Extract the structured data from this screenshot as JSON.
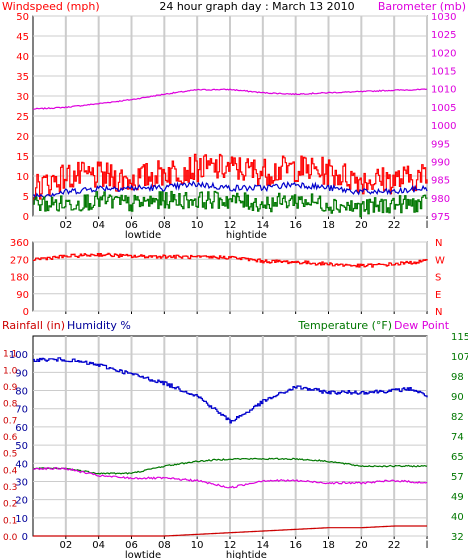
{
  "header": {
    "left_label": "Windspeed (mph)",
    "title": "24 hour graph day : March 13 2010",
    "right_label": "Barometer (mb)"
  },
  "panel3_header": {
    "rainfall_label": "Rainfall (in)",
    "humidity_label": "Humidity %",
    "temperature_label": "Temperature (°F)",
    "dewpoint_label": "Dew Point"
  },
  "tide_labels": {
    "low": "lowtide",
    "high": "hightide"
  },
  "x_ticks": [
    "02",
    "04",
    "06",
    "08",
    "10",
    "12",
    "14",
    "16",
    "18",
    "20",
    "22",
    "l"
  ],
  "colors": {
    "red": "#ff0000",
    "darkred": "#cc0000",
    "blue": "#0000cc",
    "green": "#007700",
    "magenta": "#dd00dd",
    "navy": "#000099",
    "grid": "#cccccc"
  },
  "chart_data": [
    {
      "type": "line",
      "title": "24 hour graph day : March 13 2010",
      "x_range": [
        0,
        24
      ],
      "left_axis": {
        "label": "Windspeed (mph)",
        "ticks": [
          0,
          5,
          10,
          15,
          20,
          25,
          30,
          35,
          40,
          45,
          50
        ],
        "ylim": [
          0,
          50
        ]
      },
      "right_axis": {
        "label": "Barometer (mb)",
        "ticks": [
          975,
          980,
          985,
          990,
          995,
          1000,
          1005,
          1010,
          1015,
          1020,
          1025,
          1030
        ],
        "ylim": [
          975,
          1030
        ]
      },
      "series": [
        {
          "axis": "right",
          "x": [
            0,
            2,
            4,
            6,
            8,
            10,
            12,
            14,
            16,
            18,
            20,
            22,
            24
          ],
          "values": [
            1004.4,
            1004.9,
            1005.9,
            1007.0,
            1008.5,
            1009.7,
            1009.8,
            1008.9,
            1008.5,
            1008.9,
            1009.2,
            1009.6,
            1009.8
          ]
        },
        {
          "axis": "left",
          "x": [
            0,
            2,
            4,
            6,
            8,
            10,
            12,
            14,
            16,
            18,
            20,
            22,
            24
          ],
          "values": [
            7,
            10,
            10,
            9,
            11,
            12,
            12,
            11,
            12,
            11,
            9,
            9,
            10
          ]
        },
        {
          "axis": "left",
          "x": [
            0,
            2,
            4,
            6,
            8,
            10,
            12,
            14,
            16,
            18,
            20,
            22,
            24
          ],
          "values": [
            5,
            6,
            7,
            7,
            7,
            8,
            7,
            7,
            8,
            7,
            6,
            6,
            7
          ]
        },
        {
          "axis": "left",
          "x": [
            0,
            2,
            4,
            6,
            8,
            10,
            12,
            14,
            16,
            18,
            20,
            22,
            24
          ],
          "values": [
            3,
            3,
            4,
            3,
            4,
            4,
            4,
            3,
            4,
            3,
            2,
            3,
            3
          ]
        }
      ],
      "tide_markers": [
        {
          "label": "lowtide",
          "x": 6.7
        },
        {
          "label": "hightide",
          "x": 13.0
        }
      ]
    },
    {
      "type": "line",
      "x_range": [
        0,
        24
      ],
      "left_axis": {
        "ticks": [
          0,
          90,
          180,
          270,
          360
        ],
        "ylim": [
          0,
          360
        ]
      },
      "right_axis": {
        "ticks": [
          "N",
          "W",
          "S",
          "E",
          "N"
        ]
      },
      "series": [
        {
          "axis": "left",
          "x": [
            0,
            2,
            4,
            6,
            8,
            10,
            12,
            14,
            16,
            18,
            20,
            22,
            24
          ],
          "values": [
            270,
            285,
            295,
            285,
            285,
            280,
            280,
            260,
            255,
            245,
            235,
            245,
            260
          ]
        }
      ]
    },
    {
      "type": "line",
      "x_range": [
        0,
        24
      ],
      "rain_axis": {
        "label": "Rainfall (in)",
        "ticks": [
          0.0,
          0.1,
          0.2,
          0.3,
          0.4,
          0.5,
          0.6,
          0.7,
          0.8,
          0.9,
          1.0,
          1.1
        ],
        "ylim": [
          0,
          1.2
        ]
      },
      "humidity_axis": {
        "label": "Humidity %",
        "ticks": [
          0,
          10,
          20,
          30,
          40,
          50,
          60,
          70,
          80,
          90,
          100
        ],
        "ylim": [
          0,
          110
        ]
      },
      "temperature_axis": {
        "label": "Temperature (°F)",
        "ticks": [
          32,
          40,
          49,
          57,
          65,
          74,
          82,
          90,
          98,
          107,
          115
        ],
        "ylim": [
          32,
          115
        ]
      },
      "series": [
        {
          "axis": "humidity",
          "x": [
            0,
            2,
            4,
            6,
            8,
            10,
            11,
            12,
            13,
            14,
            16,
            18,
            20,
            22,
            23,
            24
          ],
          "values": [
            97,
            97,
            94,
            89,
            84,
            77,
            70,
            63,
            68,
            74,
            82,
            79,
            79,
            80,
            81,
            77
          ]
        },
        {
          "axis": "temperature",
          "x": [
            0,
            2,
            4,
            6,
            8,
            10,
            12,
            14,
            16,
            18,
            20,
            22,
            24
          ],
          "values": [
            60,
            60,
            58,
            58,
            61,
            63,
            64,
            64,
            64,
            63,
            61,
            61,
            61
          ]
        },
        {
          "axis": "temperature",
          "x": [
            0,
            2,
            4,
            6,
            8,
            10,
            12,
            14,
            16,
            18,
            20,
            22,
            24
          ],
          "values": [
            60,
            60,
            57,
            56,
            56,
            55,
            52,
            55,
            55,
            54,
            54,
            55,
            54
          ]
        },
        {
          "axis": "rain",
          "x": [
            0,
            2,
            4,
            6,
            8,
            10,
            12,
            14,
            16,
            18,
            20,
            22,
            24
          ],
          "values": [
            0.0,
            0.0,
            0.0,
            0.0,
            0.0,
            0.01,
            0.02,
            0.03,
            0.04,
            0.05,
            0.05,
            0.06,
            0.06
          ]
        }
      ],
      "tide_markers": [
        {
          "label": "lowtide",
          "x": 6.7
        },
        {
          "label": "hightide",
          "x": 13.0
        }
      ]
    }
  ]
}
